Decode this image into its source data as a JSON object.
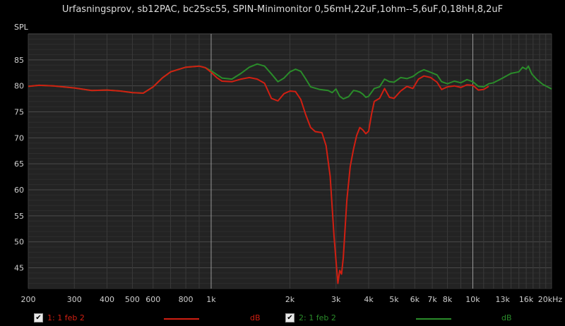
{
  "title": "Urfasningsprov, sb12PAC, bc25sc55, SPIN-Minimonitor 0,56mH,22uF,1ohm--5,6uF,0,18hH,8,2uF",
  "legend": [
    {
      "label": "1: 1 feb 2",
      "unit": "dB",
      "color": "#d11f12",
      "checked": "✔"
    },
    {
      "label": "2: 1 feb 2",
      "unit": "dB",
      "color": "#2a8c2a",
      "checked": "✔"
    }
  ],
  "chart_data": {
    "type": "line",
    "title": "Urfasningsprov, sb12PAC, bc25sc55, SPIN-Minimonitor 0,56mH,22uF,1ohm--5,6uF,0,18hH,8,2uF",
    "ylabel": "SPL",
    "xlabel": "",
    "xscale": "log",
    "xlim": [
      200,
      20000
    ],
    "ylim": [
      41,
      90
    ],
    "grid": true,
    "x_ticks": [
      {
        "v": 200,
        "label": "200"
      },
      {
        "v": 300,
        "label": "300"
      },
      {
        "v": 400,
        "label": "400"
      },
      {
        "v": 500,
        "label": "500"
      },
      {
        "v": 600,
        "label": "600"
      },
      {
        "v": 800,
        "label": "800"
      },
      {
        "v": 1000,
        "label": "1k"
      },
      {
        "v": 2000,
        "label": "2k"
      },
      {
        "v": 3000,
        "label": "3k"
      },
      {
        "v": 4000,
        "label": "4k"
      },
      {
        "v": 5000,
        "label": "5k"
      },
      {
        "v": 6000,
        "label": "6k"
      },
      {
        "v": 7000,
        "label": "7k"
      },
      {
        "v": 8000,
        "label": "8k"
      },
      {
        "v": 10000,
        "label": "10k"
      },
      {
        "v": 13000,
        "label": "13k"
      },
      {
        "v": 16000,
        "label": "16k"
      },
      {
        "v": 20000,
        "label": "20kHz"
      }
    ],
    "y_ticks": [
      45,
      50,
      55,
      60,
      65,
      70,
      75,
      80,
      85
    ],
    "series": [
      {
        "name": "1: 1 feb 2",
        "color": "#d11f12",
        "points": [
          [
            200,
            79.9
          ],
          [
            220,
            80.1
          ],
          [
            250,
            80.0
          ],
          [
            300,
            79.6
          ],
          [
            350,
            79.1
          ],
          [
            400,
            79.2
          ],
          [
            450,
            79.0
          ],
          [
            500,
            78.7
          ],
          [
            550,
            78.6
          ],
          [
            600,
            79.8
          ],
          [
            650,
            81.5
          ],
          [
            700,
            82.7
          ],
          [
            800,
            83.6
          ],
          [
            900,
            83.8
          ],
          [
            950,
            83.5
          ],
          [
            1000,
            82.6
          ],
          [
            1050,
            81.6
          ],
          [
            1100,
            80.9
          ],
          [
            1200,
            80.8
          ],
          [
            1300,
            81.3
          ],
          [
            1400,
            81.6
          ],
          [
            1500,
            81.3
          ],
          [
            1600,
            80.5
          ],
          [
            1700,
            77.6
          ],
          [
            1800,
            77.1
          ],
          [
            1900,
            78.5
          ],
          [
            2000,
            79.0
          ],
          [
            2100,
            78.9
          ],
          [
            2200,
            77.4
          ],
          [
            2300,
            74.4
          ],
          [
            2400,
            72.0
          ],
          [
            2500,
            71.2
          ],
          [
            2650,
            71.0
          ],
          [
            2750,
            68.5
          ],
          [
            2850,
            62.6
          ],
          [
            2950,
            51.0
          ],
          [
            3000,
            46.5
          ],
          [
            3050,
            42.0
          ],
          [
            3100,
            44.5
          ],
          [
            3150,
            43.8
          ],
          [
            3200,
            47.0
          ],
          [
            3300,
            58.0
          ],
          [
            3400,
            64.5
          ],
          [
            3500,
            67.8
          ],
          [
            3600,
            70.5
          ],
          [
            3700,
            72.0
          ],
          [
            3800,
            71.5
          ],
          [
            3900,
            70.8
          ],
          [
            4000,
            71.3
          ],
          [
            4100,
            74.5
          ],
          [
            4200,
            77.0
          ],
          [
            4400,
            77.6
          ],
          [
            4600,
            79.5
          ],
          [
            4800,
            77.8
          ],
          [
            5000,
            77.6
          ],
          [
            5300,
            79.0
          ],
          [
            5600,
            79.9
          ],
          [
            5900,
            79.5
          ],
          [
            6200,
            81.3
          ],
          [
            6500,
            81.9
          ],
          [
            6900,
            81.6
          ],
          [
            7300,
            80.7
          ],
          [
            7600,
            79.3
          ],
          [
            8000,
            79.8
          ],
          [
            8500,
            80.0
          ],
          [
            9000,
            79.7
          ],
          [
            9500,
            80.2
          ],
          [
            10000,
            80.1
          ],
          [
            10500,
            79.2
          ],
          [
            11000,
            79.3
          ],
          [
            11500,
            79.9
          ]
        ]
      },
      {
        "name": "2: 1 feb 2",
        "color": "#2a8c2a",
        "points": [
          [
            200,
            79.9
          ],
          [
            220,
            80.1
          ],
          [
            250,
            80.0
          ],
          [
            300,
            79.6
          ],
          [
            350,
            79.1
          ],
          [
            400,
            79.2
          ],
          [
            450,
            79.0
          ],
          [
            500,
            78.7
          ],
          [
            550,
            78.6
          ],
          [
            600,
            79.8
          ],
          [
            650,
            81.5
          ],
          [
            700,
            82.7
          ],
          [
            800,
            83.6
          ],
          [
            900,
            83.8
          ],
          [
            950,
            83.5
          ],
          [
            1000,
            82.9
          ],
          [
            1100,
            81.5
          ],
          [
            1200,
            81.3
          ],
          [
            1300,
            82.4
          ],
          [
            1400,
            83.6
          ],
          [
            1500,
            84.2
          ],
          [
            1600,
            83.8
          ],
          [
            1700,
            82.3
          ],
          [
            1800,
            80.8
          ],
          [
            1900,
            81.5
          ],
          [
            2000,
            82.7
          ],
          [
            2100,
            83.2
          ],
          [
            2200,
            82.8
          ],
          [
            2300,
            81.3
          ],
          [
            2400,
            79.8
          ],
          [
            2600,
            79.3
          ],
          [
            2800,
            79.1
          ],
          [
            2900,
            78.7
          ],
          [
            3000,
            79.4
          ],
          [
            3100,
            78.0
          ],
          [
            3200,
            77.5
          ],
          [
            3350,
            77.9
          ],
          [
            3500,
            79.1
          ],
          [
            3600,
            79.0
          ],
          [
            3700,
            78.8
          ],
          [
            3800,
            78.4
          ],
          [
            3900,
            77.8
          ],
          [
            4000,
            78.0
          ],
          [
            4200,
            79.5
          ],
          [
            4400,
            79.8
          ],
          [
            4600,
            81.3
          ],
          [
            4800,
            80.8
          ],
          [
            5000,
            80.7
          ],
          [
            5300,
            81.6
          ],
          [
            5600,
            81.4
          ],
          [
            5900,
            81.8
          ],
          [
            6200,
            82.6
          ],
          [
            6500,
            83.1
          ],
          [
            6900,
            82.6
          ],
          [
            7300,
            82.1
          ],
          [
            7600,
            80.8
          ],
          [
            8000,
            80.4
          ],
          [
            8500,
            80.9
          ],
          [
            9000,
            80.6
          ],
          [
            9500,
            81.2
          ],
          [
            10000,
            80.8
          ],
          [
            10500,
            79.9
          ],
          [
            11000,
            79.8
          ],
          [
            11500,
            80.4
          ],
          [
            12000,
            80.6
          ],
          [
            13000,
            81.5
          ],
          [
            14000,
            82.4
          ],
          [
            15000,
            82.7
          ],
          [
            15500,
            83.6
          ],
          [
            16000,
            83.2
          ],
          [
            16300,
            83.8
          ],
          [
            16800,
            82.3
          ],
          [
            17500,
            81.3
          ],
          [
            18500,
            80.3
          ],
          [
            20000,
            79.4
          ]
        ]
      }
    ]
  }
}
